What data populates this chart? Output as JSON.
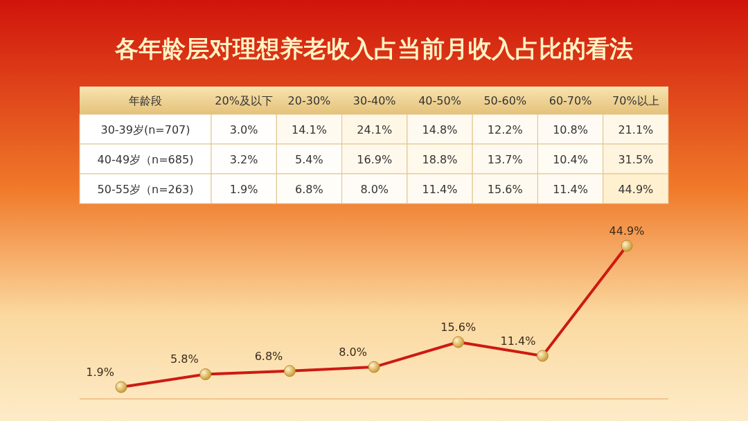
{
  "chart_data": [
    {
      "type": "heatmap",
      "title": "各年龄层对理想养老收入占当前月收入占比的看法",
      "ylabel": "年龄段",
      "categories": [
        "20%及以下",
        "20-30%",
        "30-40%",
        "40-50%",
        "50-60%",
        "60-70%",
        "70%以上"
      ],
      "y_categories": [
        "30-39岁(n=707)",
        "40-49岁（n=685)",
        "50-55岁（n=263)"
      ],
      "cells": [
        [
          3.0,
          14.1,
          24.1,
          14.8,
          12.2,
          10.8,
          21.1
        ],
        [
          3.2,
          5.4,
          16.9,
          18.8,
          13.7,
          10.4,
          31.5
        ],
        [
          1.9,
          6.8,
          8.0,
          11.4,
          15.6,
          11.4,
          44.9
        ]
      ],
      "cell_labels": [
        [
          "3.0%",
          "14.1%",
          "24.1%",
          "14.8%",
          "12.2%",
          "10.8%",
          "21.1%"
        ],
        [
          "3.2%",
          "5.4%",
          "16.9%",
          "18.8%",
          "13.7%",
          "10.4%",
          "31.5%"
        ],
        [
          "1.9%",
          "6.8%",
          "8.0%",
          "11.4%",
          "15.6%",
          "11.4%",
          "44.9%"
        ]
      ]
    },
    {
      "type": "line",
      "categories": [
        null,
        null,
        null,
        null,
        null,
        null,
        null
      ],
      "values": [
        1.9,
        5.8,
        6.8,
        8.0,
        15.6,
        11.4,
        44.9
      ],
      "value_labels": [
        "1.9%",
        "5.8%",
        "6.8%",
        "8.0%",
        "15.6%",
        "11.4%",
        "44.9%"
      ],
      "color": "#cc1a12",
      "marker": "circle"
    }
  ]
}
